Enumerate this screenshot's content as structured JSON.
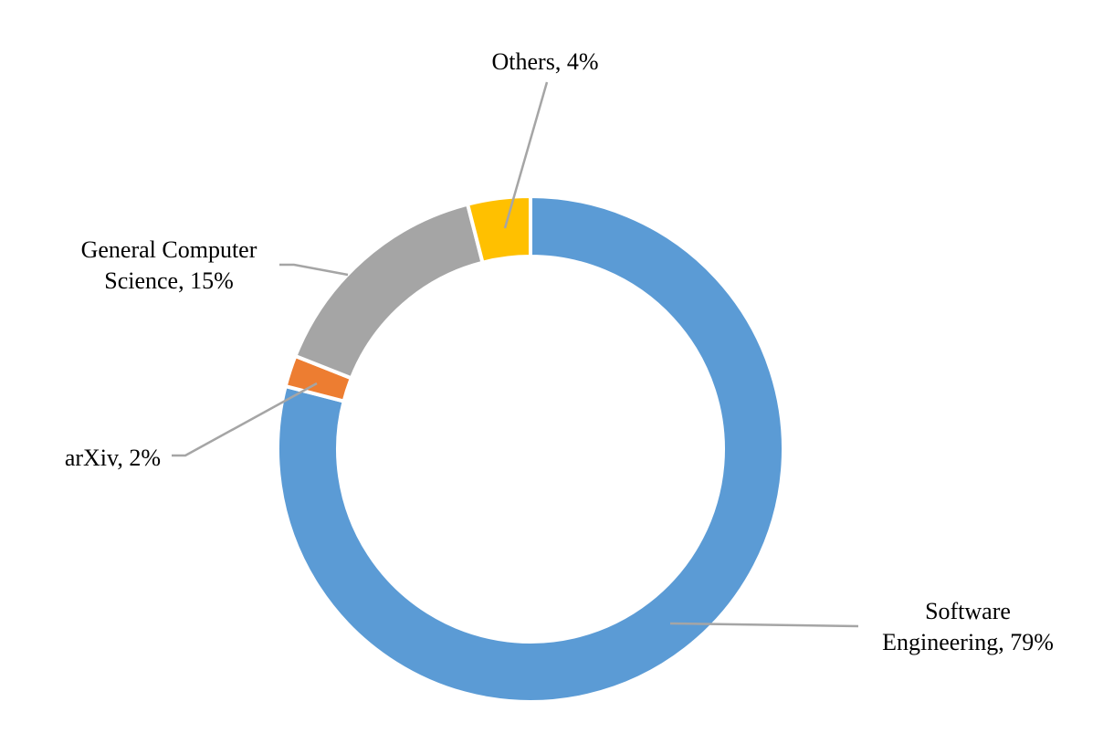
{
  "chart_data": {
    "type": "pie",
    "subtype": "doughnut",
    "title": "",
    "legend": "none",
    "series": [
      {
        "values": [
          79,
          2,
          15,
          4
        ],
        "categories": [
          "Software Engineering",
          "arXiv",
          "General Computer Science",
          "Others"
        ]
      }
    ],
    "colors": [
      "#5b9bd5",
      "#ed7d31",
      "#a5a5a5",
      "#ffc000"
    ],
    "leader_line_color": "#a5a5a5",
    "data_labels": [
      {
        "category": "Software Engineering",
        "lines": [
          "Software",
          "Engineering, 79%"
        ]
      },
      {
        "category": "arXiv",
        "lines": [
          "arXiv, 2%"
        ]
      },
      {
        "category": "General Computer Science",
        "lines": [
          "General Computer",
          "Science, 15%"
        ]
      },
      {
        "category": "Others",
        "lines": [
          "Others, 4%"
        ]
      }
    ]
  }
}
